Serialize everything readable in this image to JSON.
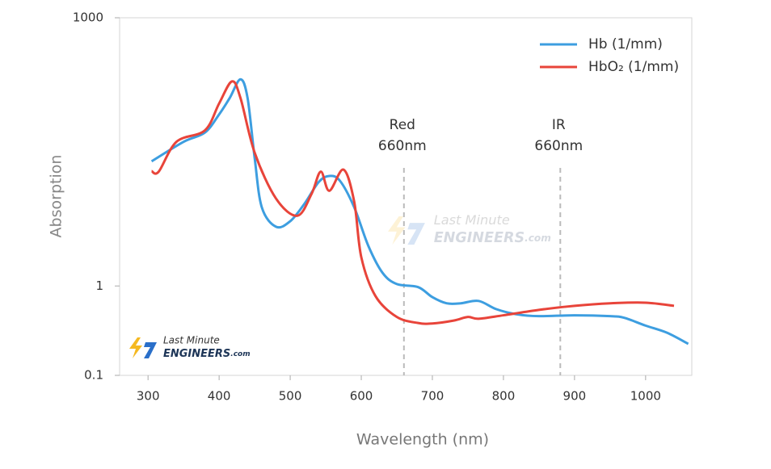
{
  "chart_data": {
    "type": "line",
    "x_label": "Wavelength (nm)",
    "y_label": "Absorption",
    "xlim": [
      260,
      1065
    ],
    "xticks": [
      300,
      400,
      500,
      600,
      700,
      800,
      900,
      1000
    ],
    "ylim": [
      0.1,
      1000
    ],
    "yticks": [
      0.1,
      1,
      1000
    ],
    "log_y": true,
    "legend": "top-right",
    "series": [
      {
        "name": "Hb (1/mm)",
        "color": "#3d9ee0",
        "x": [
          305,
          350,
          380,
          400,
          415,
          430,
          440,
          450,
          460,
          480,
          500,
          520,
          540,
          555,
          570,
          590,
          610,
          630,
          650,
          680,
          700,
          720,
          740,
          765,
          790,
          820,
          850,
          900,
          950,
          970,
          1000,
          1030,
          1060
        ],
        "values": [
          24.8,
          41,
          52,
          83,
          127,
          205,
          127,
          27,
          7.6,
          4.6,
          5.3,
          8.3,
          14.5,
          17,
          15,
          7.6,
          2.8,
          1.4,
          1.05,
          0.97,
          0.75,
          0.64,
          0.64,
          0.68,
          0.55,
          0.48,
          0.46,
          0.47,
          0.46,
          0.44,
          0.36,
          0.3,
          0.225
        ]
      },
      {
        "name": "HbO₂ (1/mm)",
        "color": "#e8443a",
        "x": [
          305,
          315,
          340,
          380,
          400,
          418,
          430,
          450,
          480,
          510,
          530,
          543,
          555,
          575,
          590,
          600,
          620,
          650,
          680,
          700,
          730,
          750,
          765,
          800,
          850,
          900,
          950,
          1000,
          1040
        ],
        "values": [
          19.3,
          19,
          41,
          55,
          110,
          194,
          127,
          31,
          9.5,
          6.1,
          10.7,
          19,
          11.6,
          20,
          8.8,
          2.1,
          0.77,
          0.45,
          0.385,
          0.38,
          0.41,
          0.45,
          0.43,
          0.47,
          0.54,
          0.6,
          0.64,
          0.65,
          0.6
        ]
      }
    ],
    "annotations": [
      {
        "lines": [
          "Red",
          "660nm"
        ],
        "x": 660
      },
      {
        "lines": [
          "IR",
          "660nm"
        ],
        "x": 880
      }
    ],
    "logo": {
      "line1": "Last Minute",
      "line2": "ENGINEERS",
      "suffix": ".com"
    }
  }
}
